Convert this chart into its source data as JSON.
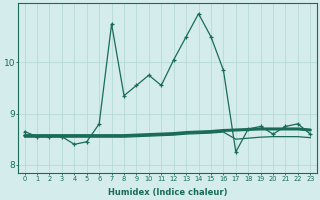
{
  "xlabel": "Humidex (Indice chaleur)",
  "x": [
    0,
    1,
    2,
    3,
    4,
    5,
    6,
    7,
    8,
    9,
    10,
    11,
    12,
    13,
    14,
    15,
    16,
    17,
    18,
    19,
    20,
    21,
    22,
    23
  ],
  "y_line_main": [
    8.65,
    8.55,
    8.55,
    8.55,
    8.4,
    8.45,
    8.8,
    10.75,
    9.35,
    9.55,
    9.75,
    9.55,
    10.05,
    10.5,
    10.95,
    10.5,
    9.85,
    8.25,
    8.7,
    8.75,
    8.6,
    8.75,
    8.8,
    8.6
  ],
  "y_trend1": [
    8.57,
    8.57,
    8.57,
    8.57,
    8.57,
    8.57,
    8.57,
    8.57,
    8.57,
    8.58,
    8.59,
    8.6,
    8.61,
    8.63,
    8.64,
    8.65,
    8.67,
    8.68,
    8.69,
    8.7,
    8.7,
    8.7,
    8.7,
    8.68
  ],
  "y_trend2": [
    8.54,
    8.54,
    8.54,
    8.54,
    8.54,
    8.54,
    8.54,
    8.54,
    8.54,
    8.55,
    8.56,
    8.57,
    8.58,
    8.6,
    8.61,
    8.62,
    8.64,
    8.5,
    8.52,
    8.54,
    8.55,
    8.55,
    8.55,
    8.53
  ],
  "bg_color": "#d4ecec",
  "line_color": "#1a6b5a",
  "grid_color": "#b8d8d8",
  "xticks": [
    0,
    1,
    2,
    3,
    4,
    5,
    6,
    7,
    8,
    9,
    10,
    11,
    12,
    13,
    14,
    15,
    16,
    17,
    18,
    19,
    20,
    21,
    22,
    23
  ],
  "yticks": [
    8,
    9,
    10
  ],
  "ylim": [
    7.85,
    11.15
  ],
  "xlim": [
    -0.5,
    23.5
  ],
  "figsize": [
    3.2,
    2.0
  ],
  "dpi": 100
}
